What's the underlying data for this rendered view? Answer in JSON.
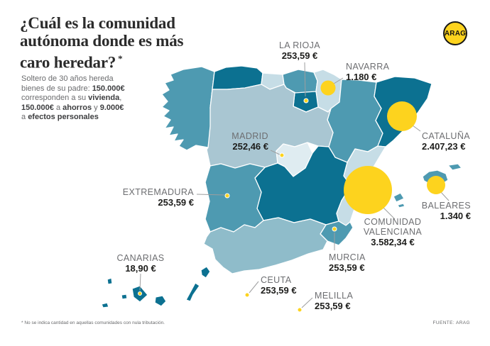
{
  "header": {
    "title_lines": [
      "¿Cuál es la comunidad",
      "autónoma donde es más",
      "caro heredar?"
    ],
    "title_note": "*",
    "intro_lines": [
      [
        {
          "t": "Soltero de 30 años hereda"
        }
      ],
      [
        {
          "t": "bienes de su padre: "
        },
        {
          "t": "150.000€",
          "b": true
        }
      ],
      [
        {
          "t": "corresponden a su "
        },
        {
          "t": "vivienda",
          "b": true
        },
        {
          "t": ","
        }
      ],
      [
        {
          "t": "150.000€",
          "b": true
        },
        {
          "t": " a "
        },
        {
          "t": "ahorros",
          "b": true
        },
        {
          "t": " y "
        },
        {
          "t": "9.000€",
          "b": true
        }
      ],
      [
        {
          "t": "a "
        },
        {
          "t": "efectos personales",
          "b": true
        }
      ]
    ],
    "logo_text": "ARAG"
  },
  "labels": [
    {
      "id": "la-rioja",
      "name": "LA RIOJA",
      "value": "253,59 €"
    },
    {
      "id": "navarra",
      "name": "NAVARRA",
      "value": "1.180 €"
    },
    {
      "id": "madrid",
      "name": "MADRID",
      "value": "252,46 €"
    },
    {
      "id": "cataluna",
      "name": "CATALUÑA",
      "value": "2.407,23 €"
    },
    {
      "id": "extremadura",
      "name": "EXTREMADURA",
      "value": "253,59 €"
    },
    {
      "id": "valenciana",
      "name": "COMUNIDAD VALENCIANA",
      "value": "3.582,34 €"
    },
    {
      "id": "baleares",
      "name": "BALEARES",
      "value": "1.340 €"
    },
    {
      "id": "murcia",
      "name": "MURCIA",
      "value": "253,59 €"
    },
    {
      "id": "canarias",
      "name": "CANARIAS",
      "value": "18,90 €"
    },
    {
      "id": "ceuta",
      "name": "CEUTA",
      "value": "253,59 €"
    },
    {
      "id": "melilla",
      "name": "MELILLA",
      "value": "253,59 €"
    }
  ],
  "map": {
    "region_tones": {
      "galicia": "mid",
      "asturias": "dark",
      "cantabria": "pale",
      "pais-vasco": "mid",
      "navarra": "pale",
      "la-rioja": "dark",
      "aragon": "mid",
      "cataluna": "dark",
      "castilla-y-leon": "light",
      "madrid": "palest",
      "castilla-la-mancha": "dark",
      "extremadura": "mid",
      "valenciana": "pale",
      "murcia": "mid",
      "andalucia": "midlight",
      "baleares": "mid",
      "canarias": "dark"
    }
  },
  "colors": {
    "dark": "#0c7191",
    "mid": "#4e9ab1",
    "midlight": "#8fbcca",
    "light": "#a9c6d2",
    "pale": "#c6dde6",
    "palest": "#dfecf1",
    "symbol": "#fdd31e",
    "leader": "#9d9e9f"
  },
  "footer": {
    "note": "* No se indica cantidad en aquellas comunidades con nula tributación.",
    "source": "FUENTE: ARAG"
  }
}
